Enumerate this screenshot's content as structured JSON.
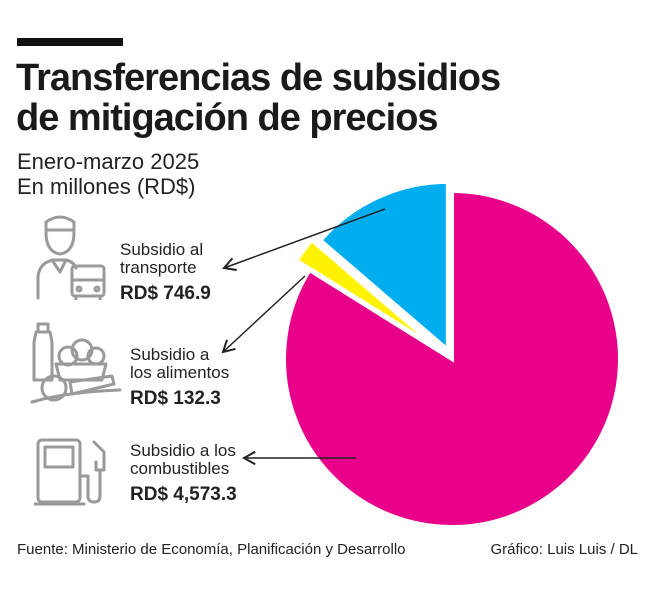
{
  "header": {
    "title_line1": "Transferencias de subsidios",
    "title_line2": "de mitigación de precios",
    "subtitle_line1": "Enero-marzo 2025",
    "subtitle_line2": "En millones (RD$)"
  },
  "chart_data": {
    "type": "pie",
    "title": "Transferencias de subsidios de mitigación de precios",
    "subtitle": "Enero-marzo 2025 — En millones (RD$)",
    "slices": [
      {
        "name": "Subsidio a los combustibles",
        "value": 4573.3,
        "display": "RD$ 4,573.3",
        "color": "#e8008a",
        "icon": "gas-pump-icon"
      },
      {
        "name": "Subsidio a los alimentos",
        "value": 132.3,
        "display": "RD$ 132.3",
        "color": "#fff200",
        "icon": "groceries-icon"
      },
      {
        "name": "Subsidio al transporte",
        "value": 746.9,
        "display": "RD$ 746.9",
        "color": "#00aeef",
        "icon": "driver-bus-icon"
      }
    ]
  },
  "labels": {
    "transport_line1": "Subsidio al",
    "transport_line2": "transporte",
    "transport_value": "RD$ 746.9",
    "food_line1": "Subsidio a",
    "food_line2": "los alimentos",
    "food_value": "RD$ 132.3",
    "fuel_line1": "Subsidio a los",
    "fuel_line2": "combustibles",
    "fuel_value": "RD$ 4,573.3"
  },
  "footer": {
    "source": "Fuente:  Ministerio de Economía, Planificación y Desarrollo",
    "credit": "Gráfico: Luis Luis / DL"
  }
}
